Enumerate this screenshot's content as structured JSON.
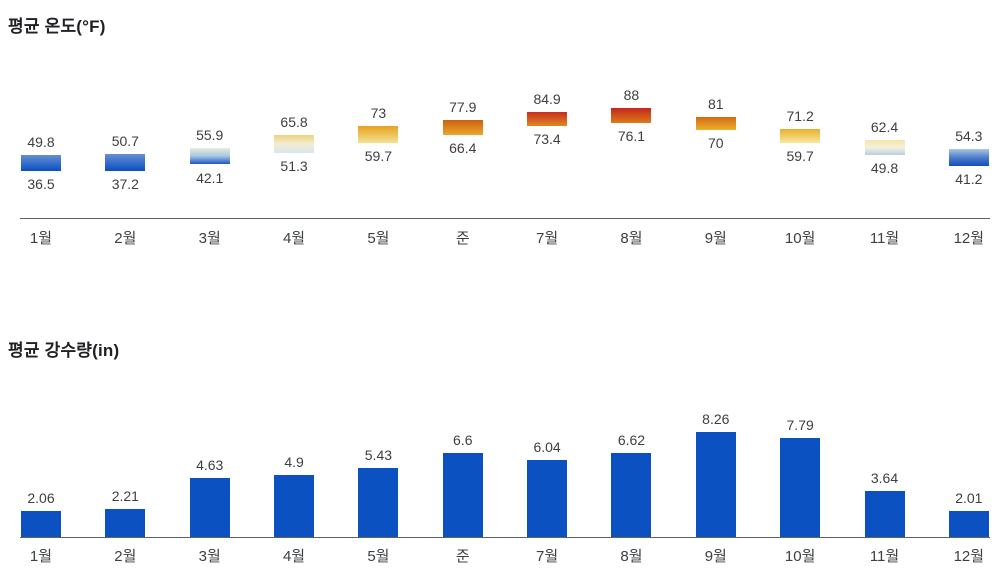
{
  "page": {
    "background": "#ffffff",
    "text_color": "#3c4043",
    "title_color": "#202124"
  },
  "chart_data": [
    {
      "type": "range-bar",
      "title": "평균 온도(°F)",
      "categories": [
        "1월",
        "2월",
        "3월",
        "4월",
        "5월",
        "준",
        "7월",
        "8월",
        "9월",
        "10월",
        "11월",
        "12월"
      ],
      "series": [
        {
          "name": "high",
          "values": [
            49.8,
            50.7,
            55.9,
            65.8,
            73,
            77.9,
            84.9,
            88,
            81,
            71.2,
            62.4,
            54.3
          ]
        },
        {
          "name": "low",
          "values": [
            36.5,
            37.2,
            42.1,
            51.3,
            59.7,
            66.4,
            73.4,
            76.1,
            70,
            59.7,
            49.8,
            41.2
          ]
        }
      ],
      "bar_gradients": [
        [
          "#6590d2",
          "#0b4ec2"
        ],
        [
          "#6590d2",
          "#0b4ec2"
        ],
        [
          "#e7edd8",
          "#a8c8e2",
          "#1b55c3"
        ],
        [
          "#ecd47e",
          "#f2ecd2",
          "#d7e7f1"
        ],
        [
          "#e8a21f",
          "#f2e294"
        ],
        [
          "#cd5f0f",
          "#eaa82e"
        ],
        [
          "#c52d20",
          "#e08820"
        ],
        [
          "#c3271d",
          "#dd7a18"
        ],
        [
          "#d2690f",
          "#ecb02f"
        ],
        [
          "#e9b02a",
          "#f6e8a2"
        ],
        [
          "#f2e9a8",
          "#f5f0dc",
          "#b9cfe4"
        ],
        [
          "#a8c8e4",
          "#4f7dc9",
          "#0f4fc0"
        ]
      ],
      "axis_color": "#5f6368",
      "label_color": "#3c4043",
      "grid": false,
      "legend": false
    },
    {
      "type": "bar",
      "title": "평균 강수량(in)",
      "categories": [
        "1월",
        "2월",
        "3월",
        "4월",
        "5월",
        "준",
        "7월",
        "8월",
        "9월",
        "10월",
        "11월",
        "12월"
      ],
      "values": [
        2.06,
        2.21,
        4.63,
        4.9,
        5.43,
        6.6,
        6.04,
        6.62,
        8.26,
        7.79,
        3.64,
        2.01
      ],
      "ylim": [
        0,
        8.26
      ],
      "bar_color": "#0c51c1",
      "axis_color": "#5f6368",
      "label_color": "#3c4043",
      "grid": false,
      "legend": false
    }
  ]
}
